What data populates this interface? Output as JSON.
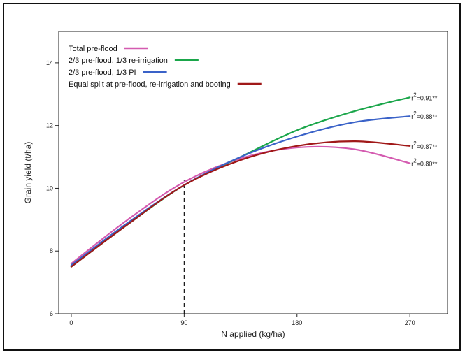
{
  "chart_data": {
    "type": "line",
    "xlabel": "N applied (kg/ha)",
    "ylabel": "Grain yield (t/ha)",
    "xlim": [
      -10,
      300
    ],
    "ylim": [
      6,
      15
    ],
    "x_ticks": [
      0,
      90,
      180,
      270
    ],
    "y_ticks": [
      6,
      8,
      10,
      12,
      14
    ],
    "x_tick_labels": [
      "0",
      "90",
      "180",
      "270"
    ],
    "y_tick_labels": [
      "6",
      "8",
      "10",
      "12",
      "14"
    ],
    "grid": false,
    "legend_position": "top-left",
    "reference_line": {
      "x": 90,
      "y_from": 6,
      "y_to": 10.25,
      "style": "dashed"
    },
    "series": [
      {
        "name": "Total pre-flood",
        "color": "#d45bb0",
        "x": [
          0,
          45,
          90,
          135,
          180,
          225,
          270
        ],
        "y": [
          7.6,
          9.0,
          10.2,
          10.95,
          11.3,
          11.25,
          10.8
        ],
        "r2_label": "r",
        "r2_sup": "2",
        "r2_value": "=0.80**"
      },
      {
        "name": "2/3 pre-flood, 1/3 re-irrigation",
        "color": "#1aa64a",
        "x": [
          0,
          45,
          90,
          135,
          180,
          225,
          270
        ],
        "y": [
          7.5,
          8.85,
          10.1,
          11.0,
          11.85,
          12.45,
          12.9
        ],
        "r2_label": "r",
        "r2_sup": "2",
        "r2_value": "=0.91**"
      },
      {
        "name": "2/3 pre-flood, 1/3 PI",
        "color": "#3a62c8",
        "x": [
          0,
          45,
          90,
          135,
          180,
          225,
          270
        ],
        "y": [
          7.55,
          8.9,
          10.1,
          11.0,
          11.65,
          12.1,
          12.3
        ],
        "r2_label": "r",
        "r2_sup": "2",
        "r2_value": "=0.88**"
      },
      {
        "name": "Equal split at pre-flood, re-irrigation and booting",
        "color": "#a01818",
        "x": [
          0,
          45,
          90,
          135,
          180,
          225,
          270
        ],
        "y": [
          7.5,
          8.85,
          10.1,
          10.9,
          11.35,
          11.5,
          11.35
        ],
        "r2_label": "r",
        "r2_sup": "2",
        "r2_value": "=0.87**"
      }
    ]
  }
}
